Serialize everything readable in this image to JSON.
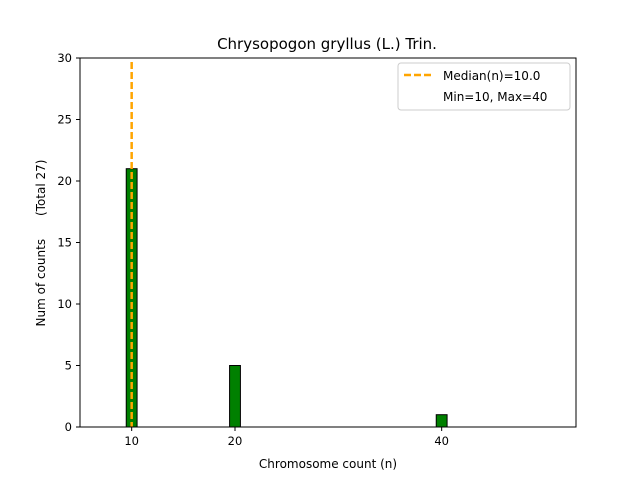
{
  "chart_data": {
    "type": "bar",
    "title": "Chrysopogon gryllus (L.) Trin.",
    "xlabel": "Chromosome count (n)",
    "ylabel": "Num of counts      (Total 27)",
    "xlim": [
      5,
      53
    ],
    "ylim": [
      0,
      30
    ],
    "xticks": [
      10,
      20,
      40
    ],
    "yticks": [
      0,
      5,
      10,
      15,
      20,
      25,
      30
    ],
    "bars": [
      {
        "x": 10,
        "value": 21
      },
      {
        "x": 20,
        "value": 5
      },
      {
        "x": 40,
        "value": 1
      }
    ],
    "bar_color": "#008000",
    "bar_edge_color": "#000000",
    "median_line": {
      "x": 10.0,
      "color": "#FFA500",
      "style": "dashed"
    },
    "legend": {
      "location": "upper right",
      "entries": [
        "Median(n)=10.0",
        "Min=10, Max=40"
      ]
    },
    "grid": false
  }
}
